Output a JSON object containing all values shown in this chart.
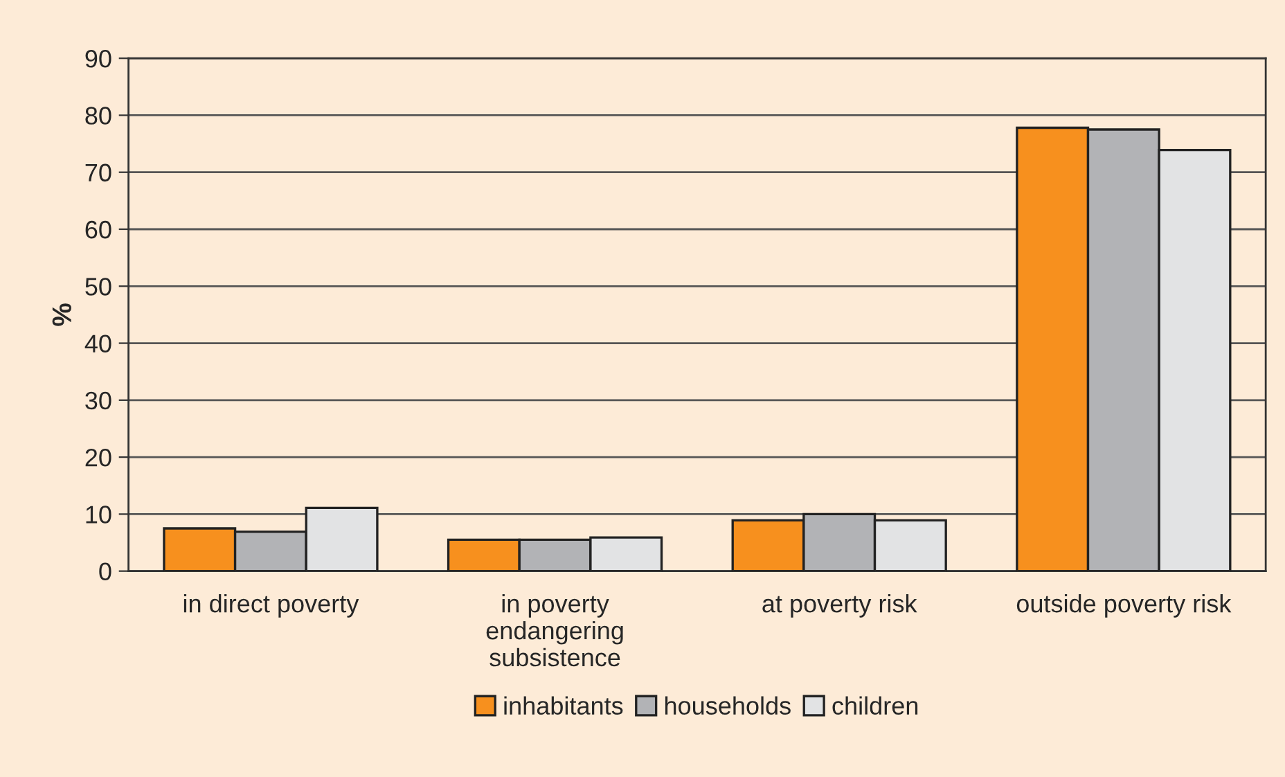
{
  "chart_data": {
    "type": "bar",
    "ylabel": "%",
    "categories": [
      "in direct poverty",
      "in poverty\nendangering\nsubsistence",
      "at poverty risk",
      "outside poverty risk"
    ],
    "series": [
      {
        "name": "inhabitants",
        "color": "#f7901e",
        "values": [
          7.5,
          5.5,
          8.9,
          77.8
        ]
      },
      {
        "name": "households",
        "color": "#b2b3b6",
        "values": [
          6.9,
          5.5,
          10.0,
          77.5
        ]
      },
      {
        "name": "children",
        "color": "#e2e3e4",
        "values": [
          11.1,
          5.9,
          8.9,
          73.9
        ]
      }
    ],
    "ylim": [
      0,
      90
    ],
    "yticks": [
      0,
      10,
      20,
      30,
      40,
      50,
      60,
      70,
      80,
      90
    ],
    "grid": "y",
    "legend": "bottom"
  }
}
